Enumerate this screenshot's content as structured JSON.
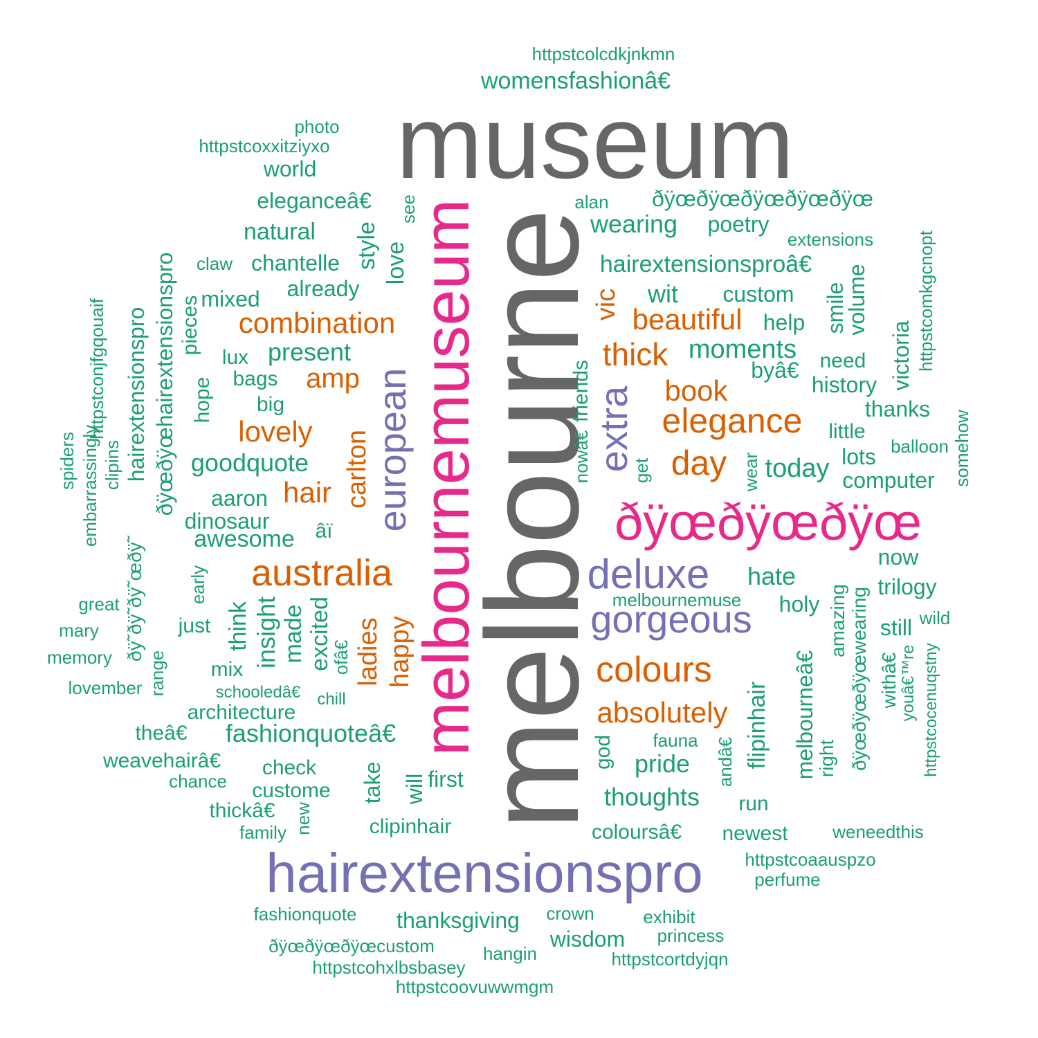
{
  "colors": {
    "gray": "#666666",
    "magenta": "#e7298a",
    "purple": "#7570b3",
    "orange": "#d95f02",
    "green": "#1b9e77"
  },
  "words": [
    {
      "text": "museum",
      "freq": 50,
      "color": "gray"
    },
    {
      "text": "melbourne",
      "freq": 56,
      "color": "gray"
    },
    {
      "text": "melbournemuseum",
      "freq": 20,
      "color": "magenta"
    },
    {
      "text": "ðÿœðÿœðÿœ",
      "freq": 18,
      "color": "magenta"
    },
    {
      "text": "hairextensionspro",
      "freq": 17,
      "color": "purple"
    },
    {
      "text": "european",
      "freq": 12,
      "color": "purple"
    },
    {
      "text": "extra",
      "freq": 12,
      "color": "purple"
    },
    {
      "text": "deluxe",
      "freq": 11,
      "color": "purple"
    },
    {
      "text": "gorgeous",
      "freq": 11,
      "color": "purple"
    },
    {
      "text": "australia",
      "freq": 9,
      "color": "orange"
    },
    {
      "text": "combination",
      "freq": 7,
      "color": "orange"
    },
    {
      "text": "elegance",
      "freq": 8,
      "color": "orange"
    },
    {
      "text": "colours",
      "freq": 8,
      "color": "orange"
    },
    {
      "text": "beautiful",
      "freq": 7,
      "color": "orange"
    },
    {
      "text": "thick",
      "freq": 7,
      "color": "orange"
    },
    {
      "text": "day",
      "freq": 7,
      "color": "orange"
    },
    {
      "text": "absolutely",
      "freq": 7,
      "color": "orange"
    },
    {
      "text": "carlton",
      "freq": 6,
      "color": "orange"
    },
    {
      "text": "ladies",
      "freq": 6,
      "color": "orange"
    },
    {
      "text": "happy",
      "freq": 6,
      "color": "orange"
    },
    {
      "text": "amp",
      "freq": 6,
      "color": "orange"
    },
    {
      "text": "lovely",
      "freq": 6,
      "color": "orange"
    },
    {
      "text": "hair",
      "freq": 6,
      "color": "orange"
    },
    {
      "text": "book",
      "freq": 6,
      "color": "orange"
    },
    {
      "text": "vic",
      "freq": 6,
      "color": "orange"
    },
    {
      "text": "httpstcolcdkjnkmn",
      "freq": 2,
      "color": "green"
    },
    {
      "text": "womensfashionâ€",
      "freq": 3,
      "color": "green"
    },
    {
      "text": "photo",
      "freq": 2,
      "color": "green"
    },
    {
      "text": "httpstcoxxitziyxo",
      "freq": 2,
      "color": "green"
    },
    {
      "text": "world",
      "freq": 3,
      "color": "green"
    },
    {
      "text": "eleganceâ€",
      "freq": 3,
      "color": "green"
    },
    {
      "text": "natural",
      "freq": 3,
      "color": "green"
    },
    {
      "text": "chantelle",
      "freq": 3,
      "color": "green"
    },
    {
      "text": "claw",
      "freq": 2,
      "color": "green"
    },
    {
      "text": "mixed",
      "freq": 3,
      "color": "green"
    },
    {
      "text": "already",
      "freq": 3,
      "color": "green"
    },
    {
      "text": "present",
      "freq": 4,
      "color": "green"
    },
    {
      "text": "lux",
      "freq": 3,
      "color": "green"
    },
    {
      "text": "bags",
      "freq": 3,
      "color": "green"
    },
    {
      "text": "big",
      "freq": 3,
      "color": "green"
    },
    {
      "text": "goodquote",
      "freq": 4,
      "color": "green"
    },
    {
      "text": "aaron",
      "freq": 3,
      "color": "green"
    },
    {
      "text": "dinosaur",
      "freq": 3,
      "color": "green"
    },
    {
      "text": "awesome",
      "freq": 4,
      "color": "green"
    },
    {
      "text": "âï",
      "freq": 3,
      "color": "green"
    },
    {
      "text": "style",
      "freq": 3,
      "color": "green"
    },
    {
      "text": "love",
      "freq": 3,
      "color": "green"
    },
    {
      "text": "see",
      "freq": 2,
      "color": "green"
    },
    {
      "text": "alan",
      "freq": 2,
      "color": "green"
    },
    {
      "text": "ðÿœðÿœðÿœðÿœðÿœ",
      "freq": 3,
      "color": "green"
    },
    {
      "text": "wearing",
      "freq": 4,
      "color": "green"
    },
    {
      "text": "poetry",
      "freq": 3,
      "color": "green"
    },
    {
      "text": "extensions",
      "freq": 2,
      "color": "green"
    },
    {
      "text": "hairextensionsproâ€",
      "freq": 4,
      "color": "green"
    },
    {
      "text": "wit",
      "freq": 4,
      "color": "green"
    },
    {
      "text": "custom",
      "freq": 3,
      "color": "green"
    },
    {
      "text": "help",
      "freq": 3,
      "color": "green"
    },
    {
      "text": "moments",
      "freq": 4,
      "color": "green"
    },
    {
      "text": "byâ€",
      "freq": 3,
      "color": "green"
    },
    {
      "text": "need",
      "freq": 3,
      "color": "green"
    },
    {
      "text": "history",
      "freq": 3,
      "color": "green"
    },
    {
      "text": "thanks",
      "freq": 3,
      "color": "green"
    },
    {
      "text": "little",
      "freq": 3,
      "color": "green"
    },
    {
      "text": "lots",
      "freq": 3,
      "color": "green"
    },
    {
      "text": "balloon",
      "freq": 2,
      "color": "green"
    },
    {
      "text": "computer",
      "freq": 3,
      "color": "green"
    },
    {
      "text": "today",
      "freq": 4,
      "color": "green"
    },
    {
      "text": "now",
      "freq": 3,
      "color": "green"
    },
    {
      "text": "hate",
      "freq": 4,
      "color": "green"
    },
    {
      "text": "trilogy",
      "freq": 3,
      "color": "green"
    },
    {
      "text": "holy",
      "freq": 3,
      "color": "green"
    },
    {
      "text": "still",
      "freq": 3,
      "color": "green"
    },
    {
      "text": "wild",
      "freq": 2,
      "color": "green"
    },
    {
      "text": "melbournemuse",
      "freq": 2,
      "color": "green"
    },
    {
      "text": "smile",
      "freq": 2,
      "color": "green"
    },
    {
      "text": "volume",
      "freq": 3,
      "color": "green"
    },
    {
      "text": "victoria",
      "freq": 3,
      "color": "green"
    },
    {
      "text": "httpstcomkgcnopt",
      "freq": 2,
      "color": "green"
    },
    {
      "text": "somehow",
      "freq": 2,
      "color": "green"
    },
    {
      "text": "friends",
      "freq": 3,
      "color": "green"
    },
    {
      "text": "nowâ€",
      "freq": 2,
      "color": "green"
    },
    {
      "text": "get",
      "freq": 2,
      "color": "green"
    },
    {
      "text": "wear",
      "freq": 2,
      "color": "green"
    },
    {
      "text": "hairextensionspro",
      "freq": 3,
      "color": "green"
    },
    {
      "text": "ðÿœðÿœhairextensionspro",
      "freq": 3,
      "color": "green"
    },
    {
      "text": "httpstconjfgqouaif",
      "freq": 2,
      "color": "green"
    },
    {
      "text": "embarrassingly",
      "freq": 2,
      "color": "green"
    },
    {
      "text": "clipins",
      "freq": 2,
      "color": "green"
    },
    {
      "text": "spiders",
      "freq": 2,
      "color": "green"
    },
    {
      "text": "pieces",
      "freq": 3,
      "color": "green"
    },
    {
      "text": "hope",
      "freq": 3,
      "color": "green"
    },
    {
      "text": "ðÿ˜ðÿ˜ðÿ˜œðÿ˜",
      "freq": 2,
      "color": "green"
    },
    {
      "text": "early",
      "freq": 2,
      "color": "green"
    },
    {
      "text": "great",
      "freq": 2,
      "color": "green"
    },
    {
      "text": "mary",
      "freq": 2,
      "color": "green"
    },
    {
      "text": "memory",
      "freq": 2,
      "color": "green"
    },
    {
      "text": "lovember",
      "freq": 2,
      "color": "green"
    },
    {
      "text": "range",
      "freq": 2,
      "color": "green"
    },
    {
      "text": "just",
      "freq": 3,
      "color": "green"
    },
    {
      "text": "think",
      "freq": 3,
      "color": "green"
    },
    {
      "text": "insight",
      "freq": 3,
      "color": "green"
    },
    {
      "text": "made",
      "freq": 3,
      "color": "green"
    },
    {
      "text": "excited",
      "freq": 3,
      "color": "green"
    },
    {
      "text": "ofâ€",
      "freq": 2,
      "color": "green"
    },
    {
      "text": "mix",
      "freq": 3,
      "color": "green"
    },
    {
      "text": "schooledâ€",
      "freq": 2,
      "color": "green"
    },
    {
      "text": "chill",
      "freq": 2,
      "color": "green"
    },
    {
      "text": "architecture",
      "freq": 3,
      "color": "green"
    },
    {
      "text": "theâ€",
      "freq": 3,
      "color": "green"
    },
    {
      "text": "fashionquoteâ€",
      "freq": 4,
      "color": "green"
    },
    {
      "text": "weavehairâ€",
      "freq": 3,
      "color": "green"
    },
    {
      "text": "chance",
      "freq": 2,
      "color": "green"
    },
    {
      "text": "check",
      "freq": 3,
      "color": "green"
    },
    {
      "text": "custome",
      "freq": 3,
      "color": "green"
    },
    {
      "text": "thickâ€",
      "freq": 3,
      "color": "green"
    },
    {
      "text": "family",
      "freq": 2,
      "color": "green"
    },
    {
      "text": "new",
      "freq": 2,
      "color": "green"
    },
    {
      "text": "take",
      "freq": 3,
      "color": "green"
    },
    {
      "text": "will",
      "freq": 3,
      "color": "green"
    },
    {
      "text": "first",
      "freq": 3,
      "color": "green"
    },
    {
      "text": "clipinhair",
      "freq": 3,
      "color": "green"
    },
    {
      "text": "god",
      "freq": 3,
      "color": "green"
    },
    {
      "text": "pride",
      "freq": 4,
      "color": "green"
    },
    {
      "text": "fauna",
      "freq": 2,
      "color": "green"
    },
    {
      "text": "thoughts",
      "freq": 4,
      "color": "green"
    },
    {
      "text": "andâ€",
      "freq": 2,
      "color": "green"
    },
    {
      "text": "flipinhair",
      "freq": 3,
      "color": "green"
    },
    {
      "text": "run",
      "freq": 3,
      "color": "green"
    },
    {
      "text": "coloursâ€",
      "freq": 3,
      "color": "green"
    },
    {
      "text": "newest",
      "freq": 3,
      "color": "green"
    },
    {
      "text": "melbourneâ€",
      "freq": 3,
      "color": "green"
    },
    {
      "text": "right",
      "freq": 2,
      "color": "green"
    },
    {
      "text": "amazing",
      "freq": 3,
      "color": "green"
    },
    {
      "text": "ðÿœðÿœðÿœwearing",
      "freq": 2,
      "color": "green"
    },
    {
      "text": "withâ€",
      "freq": 2,
      "color": "green"
    },
    {
      "text": "youâ€™re",
      "freq": 2,
      "color": "green"
    },
    {
      "text": "httpstcocenuqstny",
      "freq": 2,
      "color": "green"
    },
    {
      "text": "weneedthis",
      "freq": 2,
      "color": "green"
    },
    {
      "text": "httpstcoaauspzo",
      "freq": 2,
      "color": "green"
    },
    {
      "text": "perfume",
      "freq": 2,
      "color": "green"
    },
    {
      "text": "fashionquote",
      "freq": 2,
      "color": "green"
    },
    {
      "text": "thanksgiving",
      "freq": 3,
      "color": "green"
    },
    {
      "text": "crown",
      "freq": 2,
      "color": "green"
    },
    {
      "text": "exhibit",
      "freq": 2,
      "color": "green"
    },
    {
      "text": "wisdom",
      "freq": 3,
      "color": "green"
    },
    {
      "text": "princess",
      "freq": 2,
      "color": "green"
    },
    {
      "text": "ðÿœðÿœðÿœcustom",
      "freq": 2,
      "color": "green"
    },
    {
      "text": "httpstcohxlbsbasey",
      "freq": 2,
      "color": "green"
    },
    {
      "text": "hangin",
      "freq": 2,
      "color": "green"
    },
    {
      "text": "httpstcortdyjqn",
      "freq": 2,
      "color": "green"
    },
    {
      "text": "httpstcoovuwwmgm",
      "freq": 2,
      "color": "green"
    }
  ]
}
